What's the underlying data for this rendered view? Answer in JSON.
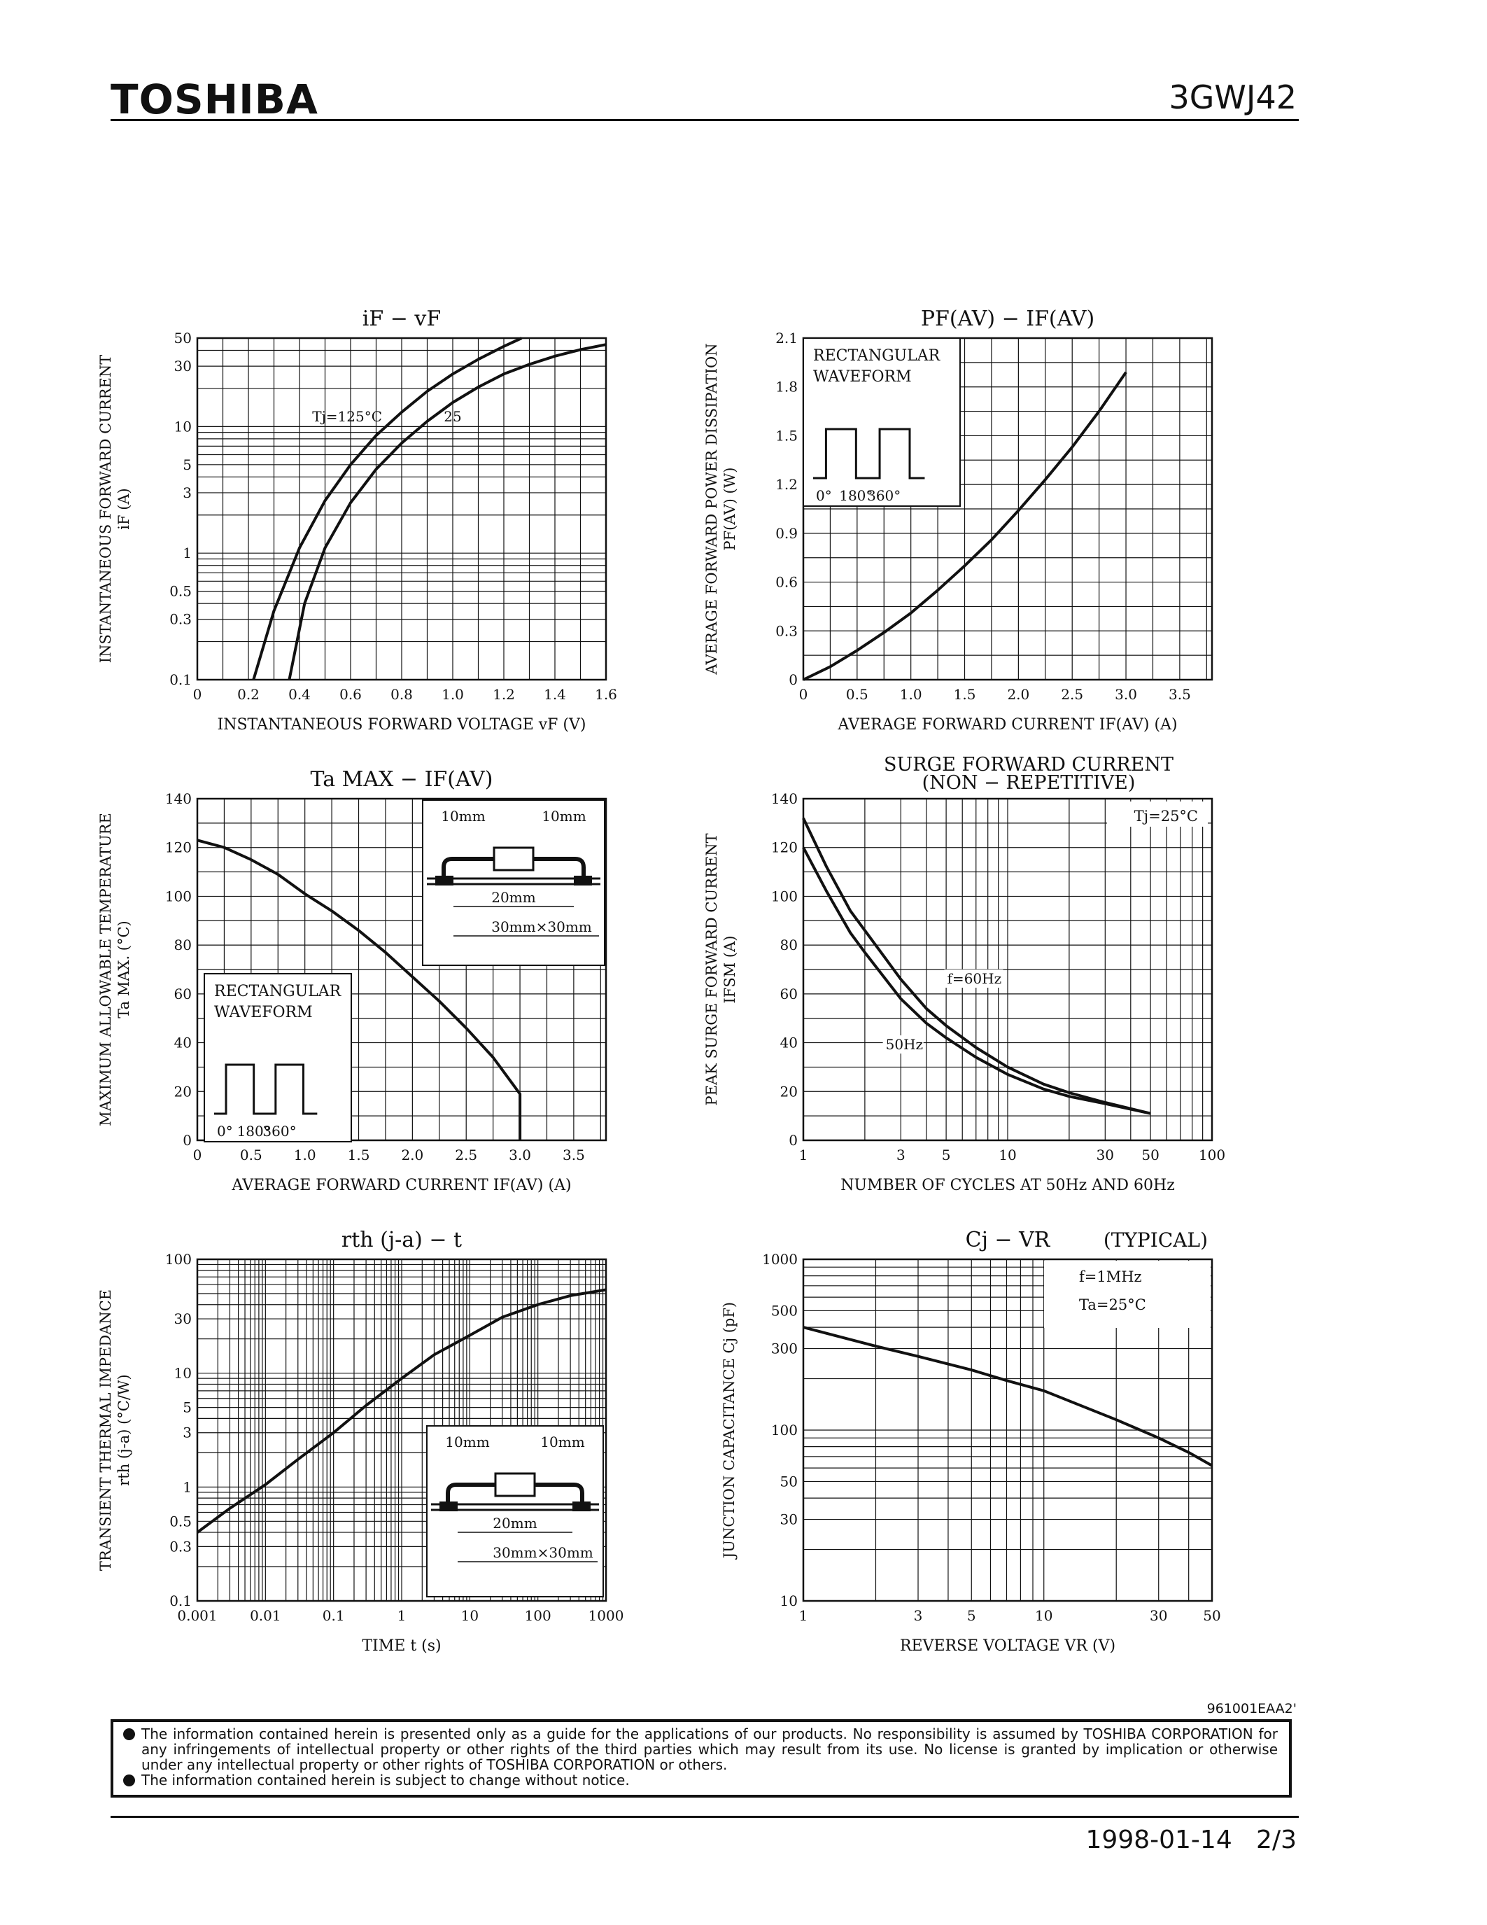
{
  "header": {
    "logo": "TOSHIBA",
    "part_number": "3GWJ42"
  },
  "footer": {
    "doc_code": "961001EAA2'",
    "date_page": "1998-01-14   2/3",
    "disclaimer": [
      "The information contained herein is presented only as a guide for the applications of our products. No responsibility is assumed by TOSHIBA CORPORATION for any infringements of intellectual property or other rights of the third parties which may result from its use. No license is granted by implication or otherwise under any intellectual property or other rights of TOSHIBA CORPORATION or others.",
      "The information contained herein is subject to change without notice."
    ]
  },
  "colors": {
    "ink": "#111111",
    "paper": "#ffffff"
  },
  "chart_data": [
    {
      "id": "if_vf",
      "type": "line",
      "title": "iF − vF",
      "xlabel": "INSTANTANEOUS FORWARD VOLTAGE  vF  (V)",
      "ylabel": [
        "INSTANTANEOUS FORWARD CURRENT",
        "iF  (A)"
      ],
      "x_scale": "linear",
      "y_scale": "log",
      "xlim": [
        0,
        1.6
      ],
      "ylim": [
        0.1,
        50
      ],
      "x_ticks": [
        0,
        0.2,
        0.4,
        0.6,
        0.8,
        1.0,
        1.2,
        1.4,
        1.6
      ],
      "x_tick_labels": [
        "0",
        "0.2",
        "0.4",
        "0.6",
        "0.8",
        "1.0",
        "1.2",
        "1.4",
        "1.6"
      ],
      "y_ticks": [
        0.1,
        0.3,
        0.5,
        1,
        3,
        5,
        10,
        30,
        50
      ],
      "y_tick_labels": [
        "0.1",
        "0.3",
        "0.5",
        "1",
        "3",
        "5",
        "10",
        "30",
        "50"
      ],
      "series": [
        {
          "name": "Tj=125°C",
          "x": [
            0.22,
            0.3,
            0.4,
            0.5,
            0.6,
            0.7,
            0.8,
            0.9,
            1.0,
            1.1,
            1.2,
            1.27
          ],
          "y": [
            0.1,
            0.35,
            1.1,
            2.6,
            5.0,
            8.5,
            13,
            19,
            26,
            34,
            43,
            50
          ]
        },
        {
          "name": "25",
          "x": [
            0.36,
            0.42,
            0.5,
            0.6,
            0.7,
            0.8,
            0.9,
            1.0,
            1.1,
            1.2,
            1.3,
            1.4,
            1.5,
            1.6
          ],
          "y": [
            0.1,
            0.4,
            1.1,
            2.5,
            4.6,
            7.4,
            11,
            15.5,
            20.5,
            26,
            31,
            36,
            40.5,
            44.5
          ]
        }
      ],
      "annotations": [
        {
          "text": "Tj=125°C",
          "x": 0.45,
          "y": 12
        },
        {
          "text": "25",
          "x": 1.0,
          "y": 12
        }
      ]
    },
    {
      "id": "pf_if",
      "type": "line",
      "title": "PF(AV) − IF(AV)",
      "xlabel": "AVERAGE FORWARD CURRENT  IF(AV)  (A)",
      "ylabel": [
        "AVERAGE FORWARD POWER DISSIPATION",
        "PF(AV)  (W)"
      ],
      "x_scale": "linear",
      "y_scale": "linear",
      "xlim": [
        0,
        3.8
      ],
      "ylim": [
        0,
        2.1
      ],
      "x_ticks": [
        0,
        0.5,
        1.0,
        1.5,
        2.0,
        2.5,
        3.0,
        3.5
      ],
      "x_tick_labels": [
        "0",
        "0.5",
        "1.0",
        "1.5",
        "2.0",
        "2.5",
        "3.0",
        "3.5"
      ],
      "y_ticks": [
        0,
        0.3,
        0.6,
        0.9,
        1.2,
        1.5,
        1.8,
        2.1
      ],
      "y_tick_labels": [
        "0",
        "0.3",
        "0.6",
        "0.9",
        "1.2",
        "1.5",
        "1.8",
        "2.1"
      ],
      "series": [
        {
          "name": "",
          "x": [
            0,
            0.25,
            0.5,
            0.75,
            1.0,
            1.25,
            1.5,
            1.75,
            2.0,
            2.25,
            2.5,
            2.75,
            3.0
          ],
          "y": [
            0,
            0.08,
            0.18,
            0.29,
            0.41,
            0.55,
            0.7,
            0.86,
            1.04,
            1.23,
            1.43,
            1.65,
            1.89
          ]
        }
      ],
      "inset": {
        "lines": [
          "RECTANGULAR",
          "WAVEFORM"
        ],
        "wave_labels": [
          "0°",
          "180°",
          "360°"
        ]
      }
    },
    {
      "id": "ta_if",
      "type": "line",
      "title": "Ta MAX − IF(AV)",
      "xlabel": "AVERAGE FORWARD CURRENT  IF(AV)  (A)",
      "ylabel": [
        "MAXIMUM ALLOWABLE TEMPERATURE",
        "Ta MAX.  (°C)"
      ],
      "x_scale": "linear",
      "y_scale": "linear",
      "xlim": [
        0,
        3.8
      ],
      "ylim": [
        0,
        140
      ],
      "x_ticks": [
        0,
        0.5,
        1.0,
        1.5,
        2.0,
        2.5,
        3.0,
        3.5
      ],
      "x_tick_labels": [
        "0",
        "0.5",
        "1.0",
        "1.5",
        "2.0",
        "2.5",
        "3.0",
        "3.5"
      ],
      "y_ticks": [
        0,
        20,
        40,
        60,
        80,
        100,
        120,
        140
      ],
      "y_tick_labels": [
        "0",
        "20",
        "40",
        "60",
        "80",
        "100",
        "120",
        "140"
      ],
      "series": [
        {
          "name": "",
          "x": [
            0,
            0.25,
            0.5,
            0.75,
            1.0,
            1.25,
            1.5,
            1.75,
            2.0,
            2.25,
            2.5,
            2.75,
            3.0,
            3.0
          ],
          "y": [
            123,
            120,
            115,
            109,
            101,
            94,
            86,
            77,
            67,
            57,
            46,
            34,
            19,
            0
          ]
        }
      ],
      "inset_waveform": {
        "lines": [
          "RECTANGULAR",
          "WAVEFORM"
        ],
        "wave_labels": [
          "0°",
          "180°",
          "360°"
        ]
      },
      "inset_mount": {
        "labels": [
          "10mm",
          "10mm",
          "20mm",
          "30mm×30mm"
        ]
      }
    },
    {
      "id": "surge",
      "type": "line",
      "title": [
        "SURGE FORWARD CURRENT",
        "(NON − REPETITIVE)"
      ],
      "xlabel": "NUMBER OF CYCLES AT 50Hz AND 60Hz",
      "ylabel": [
        "PEAK SURGE FORWARD CURRENT",
        "IFSM  (A)"
      ],
      "x_scale": "log",
      "y_scale": "linear",
      "xlim": [
        1,
        100
      ],
      "ylim": [
        0,
        140
      ],
      "x_ticks": [
        1,
        3,
        5,
        10,
        30,
        50,
        100
      ],
      "x_tick_labels": [
        "1",
        "3",
        "5",
        "10",
        "30",
        "50",
        "100"
      ],
      "y_ticks": [
        0,
        20,
        40,
        60,
        80,
        100,
        120,
        140
      ],
      "y_tick_labels": [
        "0",
        "20",
        "40",
        "60",
        "80",
        "100",
        "120",
        "140"
      ],
      "series": [
        {
          "name": "f=60Hz",
          "x": [
            1,
            1.3,
            1.7,
            2,
            3,
            4,
            5,
            7,
            10,
            15,
            20,
            30,
            50
          ],
          "y": [
            132,
            112,
            94,
            86,
            66,
            54,
            47,
            38,
            30,
            23,
            19.5,
            15.5,
            11
          ]
        },
        {
          "name": "50Hz",
          "x": [
            1,
            1.3,
            1.7,
            2,
            3,
            4,
            5,
            7,
            10,
            15,
            20,
            30,
            50
          ],
          "y": [
            120,
            102,
            85,
            77,
            58,
            48,
            42,
            34,
            27,
            21,
            18,
            15,
            11
          ]
        }
      ],
      "annotations": [
        {
          "text": "Tj=25°C"
        },
        {
          "text": "f=60Hz"
        },
        {
          "text": "50Hz"
        }
      ]
    },
    {
      "id": "rth_t",
      "type": "line",
      "title": "rth (j-a) − t",
      "xlabel": "TIME  t  (s)",
      "ylabel": [
        "TRANSIENT THERMAL IMPEDANCE",
        "rth (j-a)  (°C/W)"
      ],
      "x_scale": "log",
      "y_scale": "log",
      "xlim": [
        0.001,
        1000
      ],
      "ylim": [
        0.1,
        100
      ],
      "x_ticks": [
        0.001,
        0.01,
        0.1,
        1,
        10,
        100,
        1000
      ],
      "x_tick_labels": [
        "0.001",
        "0.01",
        "0.1",
        "1",
        "10",
        "100",
        "1000"
      ],
      "y_ticks": [
        0.1,
        0.3,
        0.5,
        1,
        3,
        5,
        10,
        30,
        100
      ],
      "y_tick_labels": [
        "0.1",
        "0.3",
        "0.5",
        "1",
        "3",
        "5",
        "10",
        "30",
        "100"
      ],
      "series": [
        {
          "name": "",
          "x": [
            0.001,
            0.003,
            0.01,
            0.03,
            0.1,
            0.3,
            1,
            3,
            10,
            30,
            100,
            300,
            1000
          ],
          "y": [
            0.4,
            0.65,
            1.05,
            1.75,
            3.0,
            5.2,
            9.0,
            14.5,
            21.5,
            31,
            40,
            48,
            54
          ]
        }
      ],
      "inset_mount": {
        "labels": [
          "10mm",
          "10mm",
          "20mm",
          "30mm×30mm"
        ]
      }
    },
    {
      "id": "cj_vr",
      "type": "line",
      "title": "Cj − VR",
      "subtitle": "(TYPICAL)",
      "xlabel": "REVERSE VOLTAGE  VR  (V)",
      "ylabel": [
        "JUNCTION CAPACITANCE  Cj  (pF)"
      ],
      "x_scale": "log",
      "y_scale": "log",
      "xlim": [
        1,
        50
      ],
      "ylim": [
        10,
        1000
      ],
      "x_ticks": [
        1,
        3,
        5,
        10,
        30,
        50
      ],
      "x_tick_labels": [
        "1",
        "3",
        "5",
        "10",
        "30",
        "50"
      ],
      "y_ticks": [
        10,
        30,
        50,
        100,
        300,
        500,
        1000
      ],
      "y_tick_labels": [
        "10",
        "30",
        "50",
        "100",
        "300",
        "500",
        "1000"
      ],
      "series": [
        {
          "name": "",
          "x": [
            1,
            2,
            3,
            5,
            7,
            10,
            20,
            30,
            40,
            50
          ],
          "y": [
            400,
            310,
            270,
            225,
            195,
            170,
            115,
            90,
            74,
            62
          ]
        }
      ],
      "annotations": [
        {
          "text": "f=1MHz"
        },
        {
          "text": "Ta=25°C"
        }
      ]
    }
  ]
}
